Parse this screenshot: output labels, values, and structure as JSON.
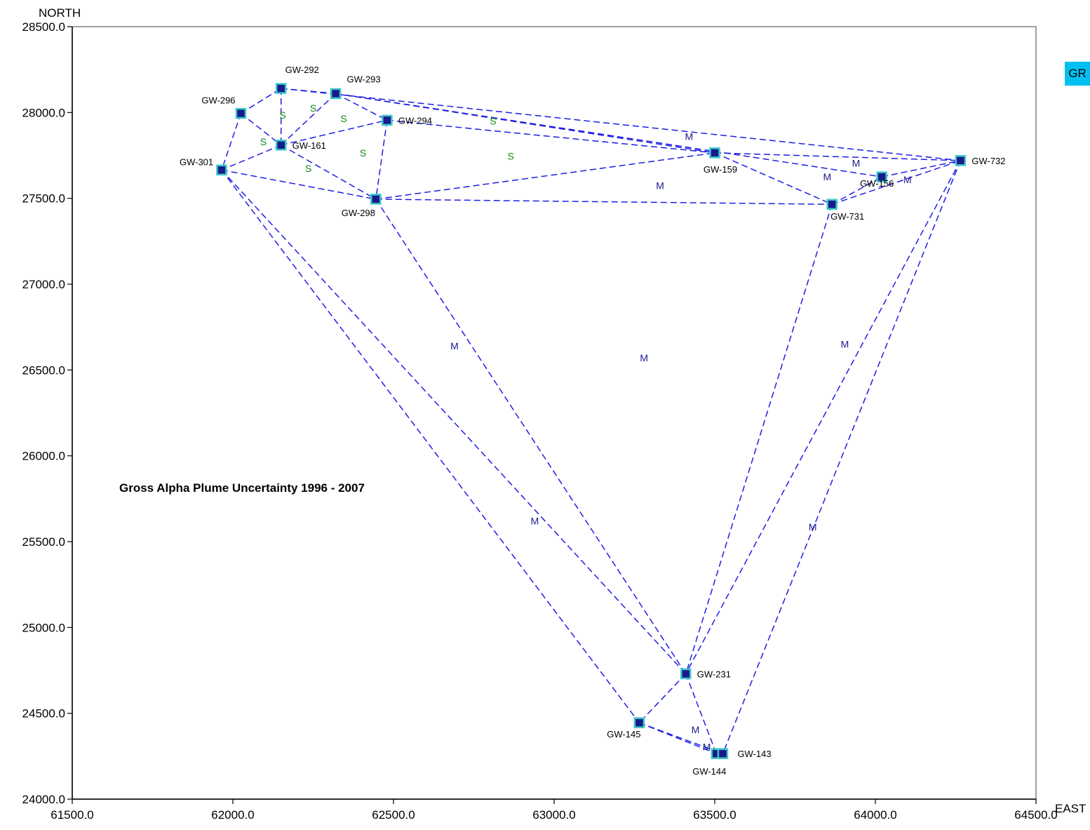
{
  "chart_data": {
    "type": "scatter",
    "title": "Gross Alpha Plume Uncertainty 1996 - 2007",
    "xlabel": "EAST",
    "ylabel": "NORTH",
    "xlim": [
      61500,
      64500
    ],
    "ylim": [
      24000,
      28500
    ],
    "x_ticks": [
      "61500.0",
      "62000.0",
      "62500.0",
      "63000.0",
      "63500.0",
      "64000.0",
      "64500.0"
    ],
    "y_ticks": [
      "24000.0",
      "24500.0",
      "25000.0",
      "25500.0",
      "26000.0",
      "26500.0",
      "27000.0",
      "27500.0",
      "28000.0",
      "28500.0"
    ],
    "grid": false,
    "legend_badge": "GR",
    "colors": {
      "marker_fill": "#1a1a8c",
      "marker_edge": "#3cc8c8",
      "edge_line": "#1e1ee6",
      "badge": "#00c0f0",
      "label_s": "#118a11",
      "label_m": "#1a1a8c"
    },
    "wells": [
      {
        "name": "GW-292",
        "x": 62150,
        "y": 28140
      },
      {
        "name": "GW-293",
        "x": 62320,
        "y": 28110
      },
      {
        "name": "GW-296",
        "x": 62025,
        "y": 27995
      },
      {
        "name": "GW-294",
        "x": 62480,
        "y": 27955
      },
      {
        "name": "GW-161",
        "x": 62150,
        "y": 27810
      },
      {
        "name": "GW-301",
        "x": 61965,
        "y": 27665
      },
      {
        "name": "GW-298",
        "x": 62445,
        "y": 27495
      },
      {
        "name": "GW-159",
        "x": 63500,
        "y": 27765
      },
      {
        "name": "GW-156",
        "x": 64020,
        "y": 27625
      },
      {
        "name": "GW-731",
        "x": 63865,
        "y": 27465
      },
      {
        "name": "GW-732",
        "x": 64265,
        "y": 27720
      },
      {
        "name": "GW-231",
        "x": 63410,
        "y": 24730
      },
      {
        "name": "GW-145",
        "x": 63265,
        "y": 24445
      },
      {
        "name": "GW-144",
        "x": 63505,
        "y": 24265
      },
      {
        "name": "GW-143",
        "x": 63525,
        "y": 24265
      }
    ],
    "edges": [
      [
        "GW-296",
        "GW-292"
      ],
      [
        "GW-296",
        "GW-161"
      ],
      [
        "GW-296",
        "GW-301"
      ],
      [
        "GW-292",
        "GW-161"
      ],
      [
        "GW-292",
        "GW-293"
      ],
      [
        "GW-293",
        "GW-161"
      ],
      [
        "GW-293",
        "GW-294"
      ],
      [
        "GW-293",
        "GW-159"
      ],
      [
        "GW-292",
        "GW-732"
      ],
      [
        "GW-161",
        "GW-301"
      ],
      [
        "GW-161",
        "GW-294"
      ],
      [
        "GW-161",
        "GW-298"
      ],
      [
        "GW-301",
        "GW-298"
      ],
      [
        "GW-294",
        "GW-298"
      ],
      [
        "GW-294",
        "GW-159"
      ],
      [
        "GW-298",
        "GW-159"
      ],
      [
        "GW-298",
        "GW-731"
      ],
      [
        "GW-293",
        "GW-156"
      ],
      [
        "GW-159",
        "GW-732"
      ],
      [
        "GW-159",
        "GW-731"
      ],
      [
        "GW-731",
        "GW-156"
      ],
      [
        "GW-731",
        "GW-732"
      ],
      [
        "GW-156",
        "GW-732"
      ],
      [
        "GW-301",
        "GW-145"
      ],
      [
        "GW-301",
        "GW-231"
      ],
      [
        "GW-298",
        "GW-231"
      ],
      [
        "GW-731",
        "GW-231"
      ],
      [
        "GW-732",
        "GW-231"
      ],
      [
        "GW-732",
        "GW-143"
      ],
      [
        "GW-231",
        "GW-145"
      ],
      [
        "GW-231",
        "GW-144"
      ],
      [
        "GW-145",
        "GW-144"
      ],
      [
        "GW-145",
        "GW-143"
      ]
    ],
    "triangle_labels": [
      {
        "text": "S",
        "x": 62155,
        "y": 27985,
        "kind": "s"
      },
      {
        "text": "S",
        "x": 62250,
        "y": 28025,
        "kind": "s"
      },
      {
        "text": "S",
        "x": 62345,
        "y": 27965,
        "kind": "s"
      },
      {
        "text": "S",
        "x": 62810,
        "y": 27950,
        "kind": "s"
      },
      {
        "text": "S",
        "x": 62095,
        "y": 27830,
        "kind": "s"
      },
      {
        "text": "S",
        "x": 62405,
        "y": 27765,
        "kind": "s"
      },
      {
        "text": "S",
        "x": 62865,
        "y": 27745,
        "kind": "s"
      },
      {
        "text": "S",
        "x": 62235,
        "y": 27675,
        "kind": "s"
      },
      {
        "text": "M",
        "x": 63420,
        "y": 27860,
        "kind": "m"
      },
      {
        "text": "M",
        "x": 63330,
        "y": 27575,
        "kind": "m"
      },
      {
        "text": "M",
        "x": 63940,
        "y": 27705,
        "kind": "m"
      },
      {
        "text": "M",
        "x": 63850,
        "y": 27625,
        "kind": "m"
      },
      {
        "text": "M",
        "x": 64100,
        "y": 27610,
        "kind": "m"
      },
      {
        "text": "M",
        "x": 62690,
        "y": 26640,
        "kind": "m"
      },
      {
        "text": "M",
        "x": 63280,
        "y": 26570,
        "kind": "m"
      },
      {
        "text": "M",
        "x": 63905,
        "y": 26650,
        "kind": "m"
      },
      {
        "text": "M",
        "x": 62940,
        "y": 25620,
        "kind": "m"
      },
      {
        "text": "M",
        "x": 63805,
        "y": 25585,
        "kind": "m"
      },
      {
        "text": "M",
        "x": 63440,
        "y": 24405,
        "kind": "m"
      },
      {
        "text": "M",
        "x": 63475,
        "y": 24305,
        "kind": "m"
      }
    ]
  }
}
